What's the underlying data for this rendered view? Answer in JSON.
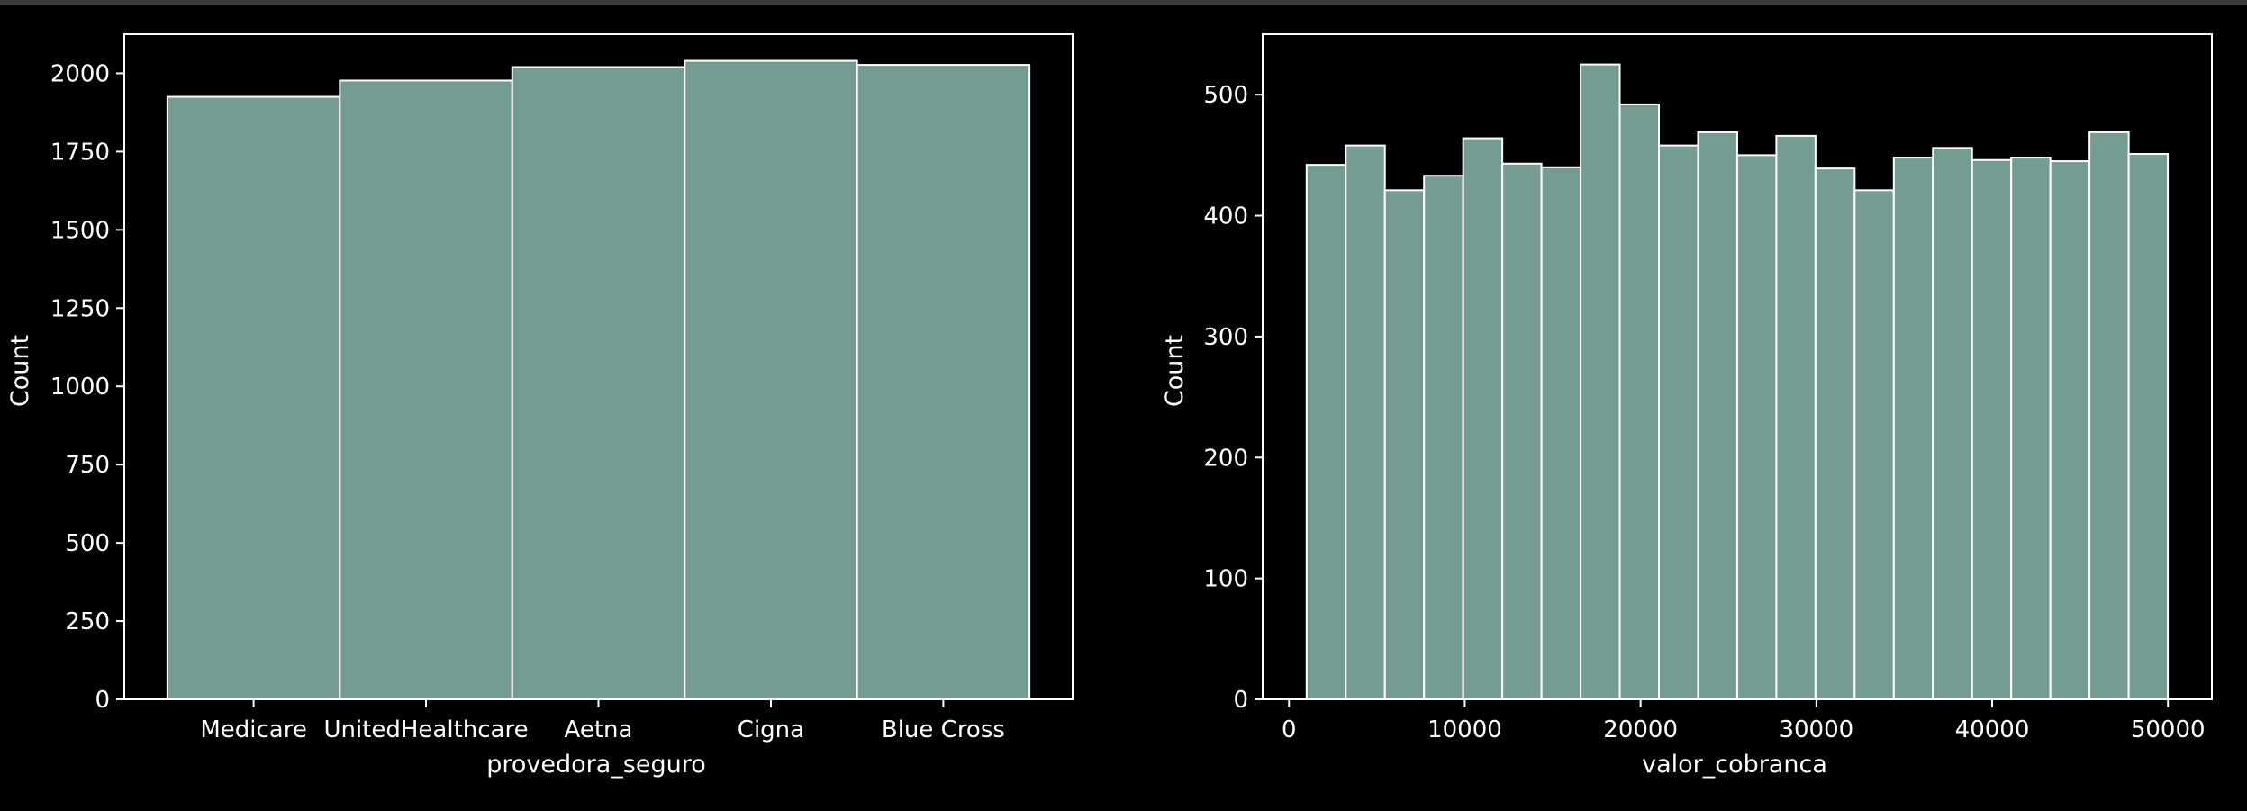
{
  "chart_data": [
    {
      "type": "bar",
      "xlabel": "provedora_seguro",
      "ylabel": "Count",
      "categories": [
        "Medicare",
        "UnitedHealthcare",
        "Aetna",
        "Cigna",
        "Blue Cross"
      ],
      "values": [
        1925,
        1977,
        2020,
        2040,
        2027
      ],
      "ylim": [
        0,
        2125
      ],
      "yticks": [
        0,
        250,
        500,
        750,
        1000,
        1250,
        1500,
        1750,
        2000
      ],
      "grid": false,
      "bar_color": "#759c93",
      "edge_color": "#ffffff"
    },
    {
      "type": "bar",
      "xlabel": "valor_cobranca",
      "ylabel": "Count",
      "bin_edges": [
        1000,
        3227,
        5454,
        7681,
        9908,
        12135,
        14362,
        16589,
        18816,
        21043,
        23270,
        25497,
        27724,
        29951,
        32178,
        34405,
        36632,
        38859,
        41086,
        43313,
        45540,
        47767,
        49994
      ],
      "values": [
        442,
        458,
        421,
        433,
        464,
        443,
        440,
        525,
        492,
        458,
        469,
        450,
        466,
        439,
        421,
        448,
        456,
        446,
        448,
        445,
        469,
        451
      ],
      "xlim": [
        -1500,
        52500
      ],
      "ylim": [
        0,
        550
      ],
      "xticks": [
        0,
        10000,
        20000,
        30000,
        40000,
        50000
      ],
      "yticks": [
        0,
        100,
        200,
        300,
        400,
        500
      ],
      "grid": false,
      "bar_color": "#759c93",
      "edge_color": "#ffffff"
    }
  ]
}
